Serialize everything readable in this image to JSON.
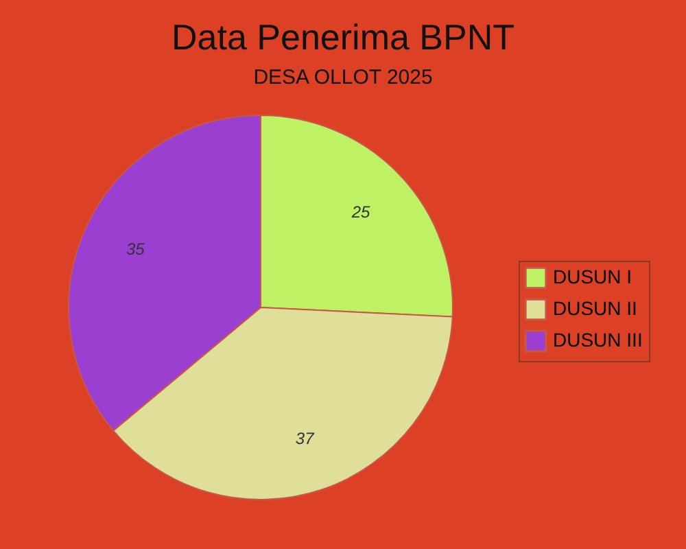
{
  "chart_data": {
    "type": "pie",
    "title": "Data Penerima BPNT",
    "subtitle": "DESA OLLOT 2025",
    "categories": [
      "DUSUN I",
      "DUSUN II",
      "DUSUN III"
    ],
    "values": [
      25,
      37,
      35
    ],
    "colors": [
      "#bef264",
      "#dfdf9a",
      "#9b3fd0"
    ],
    "data_labels": true,
    "legend": "right"
  }
}
